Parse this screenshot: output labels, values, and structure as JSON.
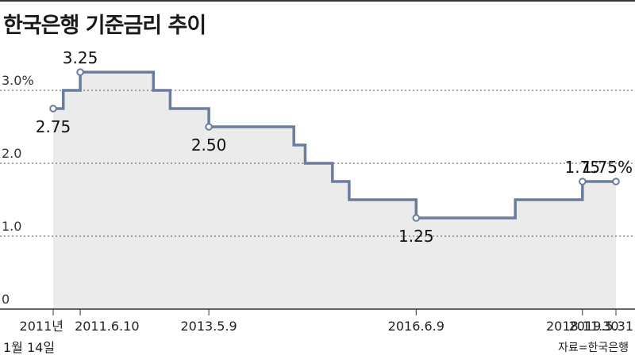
{
  "title": "한국은행 기준금리 추이",
  "source": "자료=한국은행",
  "colors": {
    "line": "#6b7c9e",
    "fill": "#ebebeb",
    "grid": "#555555",
    "text": "#222222"
  },
  "chart_data": {
    "type": "line",
    "step": true,
    "title": "한국은행 기준금리 추이",
    "xlabel": "",
    "ylabel": "",
    "ylim": [
      0,
      3.5
    ],
    "grid": true,
    "x_start": "2011-01-14",
    "x_end": "2019-05-31",
    "y_ticks": [
      {
        "value": 0,
        "label": "0"
      },
      {
        "value": 1,
        "label": "1.0"
      },
      {
        "value": 2,
        "label": "2.0"
      },
      {
        "value": 3,
        "label": "3.0%"
      }
    ],
    "x_ticks": [
      {
        "date": "2011-01-14",
        "label": "2011년",
        "label2": "1월 14일"
      },
      {
        "date": "2011-06-10",
        "label": "2011.6.10"
      },
      {
        "date": "2013-05-09",
        "label": "2013.5.9"
      },
      {
        "date": "2016-06-09",
        "label": "2016.6.9"
      },
      {
        "date": "2018-11-30",
        "label": "2018.11.30"
      },
      {
        "date": "2019-05-31",
        "label": "2019.5.31"
      }
    ],
    "steps": [
      {
        "date": "2011-01-14",
        "value": 2.75
      },
      {
        "date": "2011-03-10",
        "value": 3.0
      },
      {
        "date": "2011-06-10",
        "value": 3.25
      },
      {
        "date": "2012-07-12",
        "value": 3.0
      },
      {
        "date": "2012-10-11",
        "value": 2.75
      },
      {
        "date": "2013-05-09",
        "value": 2.5
      },
      {
        "date": "2014-08-14",
        "value": 2.25
      },
      {
        "date": "2014-10-15",
        "value": 2.0
      },
      {
        "date": "2015-03-12",
        "value": 1.75
      },
      {
        "date": "2015-06-11",
        "value": 1.5
      },
      {
        "date": "2016-06-09",
        "value": 1.25
      },
      {
        "date": "2017-11-30",
        "value": 1.5
      },
      {
        "date": "2018-11-30",
        "value": 1.75
      }
    ],
    "markers": [
      {
        "date": "2011-01-14",
        "value": 2.75,
        "label": "2.75",
        "pos": "below"
      },
      {
        "date": "2011-06-10",
        "value": 3.25,
        "label": "3.25",
        "pos": "above"
      },
      {
        "date": "2013-05-09",
        "value": 2.5,
        "label": "2.50",
        "pos": "below"
      },
      {
        "date": "2016-06-09",
        "value": 1.25,
        "label": "1.25",
        "pos": "below"
      },
      {
        "date": "2018-11-30",
        "value": 1.75,
        "label": "1.75",
        "pos": "above"
      },
      {
        "date": "2019-05-31",
        "value": 1.75,
        "label": "1.75%",
        "pos": "above"
      }
    ]
  }
}
